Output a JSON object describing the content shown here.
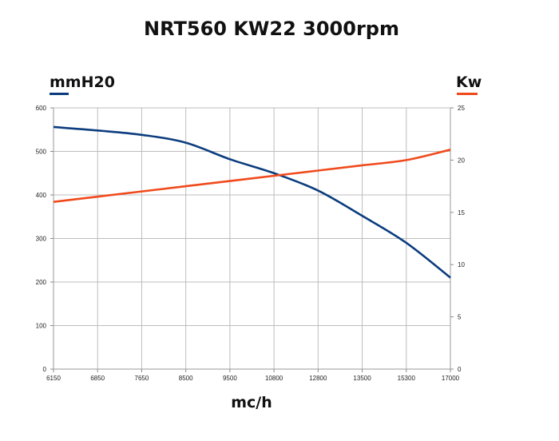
{
  "chart_data": {
    "type": "line",
    "title": "NRT560 KW22 3000rpm",
    "xlabel": "mc/h",
    "x_categories": [
      "6150",
      "6850",
      "7650",
      "8500",
      "9500",
      "10800",
      "12800",
      "13500",
      "15300",
      "17000"
    ],
    "left_axis": {
      "label": "mmH20",
      "ylim": [
        0,
        600
      ],
      "ticks": [
        "0",
        "100",
        "200",
        "300",
        "400",
        "500",
        "600"
      ]
    },
    "right_axis": {
      "label": "Kw",
      "ylim": [
        0,
        25
      ],
      "ticks": [
        "0",
        "5",
        "10",
        "15",
        "20",
        "25"
      ]
    },
    "series": [
      {
        "axis": "left",
        "color": "#0b3d7e",
        "values": [
          556,
          548,
          538,
          520,
          482,
          450,
          410,
          352,
          290,
          210
        ]
      },
      {
        "axis": "right",
        "color": "#f04a1c",
        "values": [
          16.0,
          16.5,
          17.0,
          17.5,
          18.0,
          18.5,
          19.0,
          19.5,
          20.0,
          21.0
        ]
      }
    ],
    "grid": true
  }
}
